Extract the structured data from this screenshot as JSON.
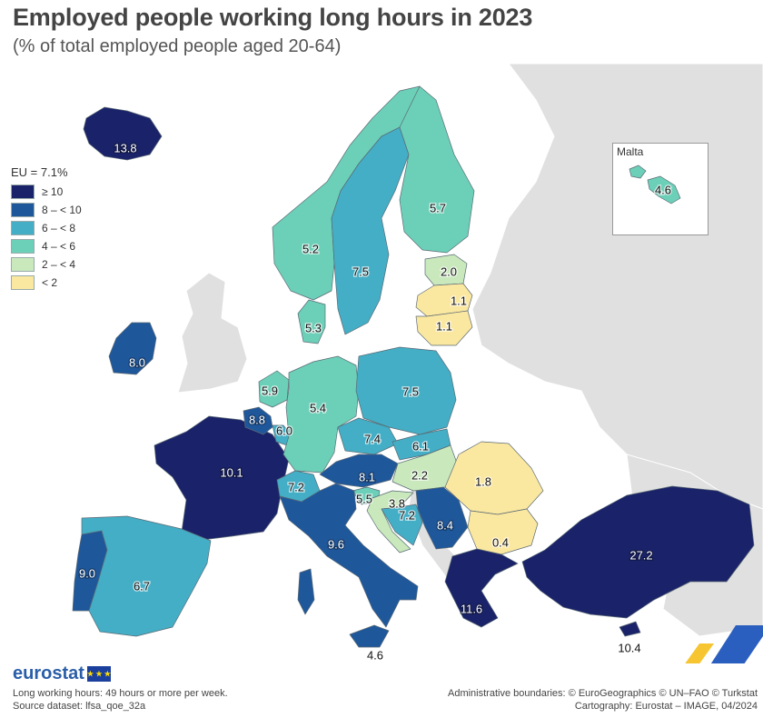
{
  "title": "Employed people working long hours in 2023",
  "subtitle": "(% of total employed people aged 20-64)",
  "legend": {
    "title": "EU = 7.1%",
    "classes": [
      {
        "label": "≥ 10",
        "color": "#1a2369"
      },
      {
        "label": "8 – < 10",
        "color": "#1f579b"
      },
      {
        "label": "6 – < 8",
        "color": "#43aec5"
      },
      {
        "label": "4 – < 6",
        "color": "#6cd0b8"
      },
      {
        "label": "2 – < 4",
        "color": "#c9e9bd"
      },
      {
        "label": "< 2",
        "color": "#fbe8a0"
      }
    ]
  },
  "inset": {
    "label": "Malta"
  },
  "map_data": {
    "type": "choropleth",
    "unit": "% of total employed people aged 20-64",
    "countries": [
      {
        "name": "Iceland",
        "value": "13.8"
      },
      {
        "name": "Ireland",
        "value": "8.0"
      },
      {
        "name": "France",
        "value": "10.1"
      },
      {
        "name": "Belgium",
        "value": "8.8"
      },
      {
        "name": "Netherlands",
        "value": "5.9"
      },
      {
        "name": "Luxembourg",
        "value": "6.0"
      },
      {
        "name": "Germany",
        "value": "5.4"
      },
      {
        "name": "Denmark",
        "value": "5.3"
      },
      {
        "name": "Norway",
        "value": "5.2"
      },
      {
        "name": "Sweden",
        "value": "7.5"
      },
      {
        "name": "Finland",
        "value": "5.7"
      },
      {
        "name": "Estonia",
        "value": "2.0"
      },
      {
        "name": "Latvia",
        "value": "1.1"
      },
      {
        "name": "Lithuania",
        "value": "1.1"
      },
      {
        "name": "Poland",
        "value": "7.5"
      },
      {
        "name": "Czechia",
        "value": "7.4"
      },
      {
        "name": "Slovakia",
        "value": "6.1"
      },
      {
        "name": "Austria",
        "value": "8.1"
      },
      {
        "name": "Switzerland",
        "value": "7.2"
      },
      {
        "name": "Hungary",
        "value": "2.2"
      },
      {
        "name": "Slovenia",
        "value": "5.5"
      },
      {
        "name": "Croatia",
        "value": "3.8"
      },
      {
        "name": "Bosnia and Herzegovina",
        "value": "7.2"
      },
      {
        "name": "Serbia",
        "value": "8.4"
      },
      {
        "name": "Romania",
        "value": "1.8"
      },
      {
        "name": "Bulgaria",
        "value": "0.4"
      },
      {
        "name": "Italy",
        "value": "9.6"
      },
      {
        "name": "Portugal",
        "value": "9.0"
      },
      {
        "name": "Spain",
        "value": "6.7"
      },
      {
        "name": "Greece",
        "value": "11.6"
      },
      {
        "name": "Türkiye",
        "value": "27.2"
      },
      {
        "name": "Cyprus",
        "value": "10.4"
      },
      {
        "name": "Malta",
        "value": "4.6"
      },
      {
        "name": "Sicily label",
        "value": "4.6"
      }
    ]
  },
  "brand": {
    "logo": "eurostat"
  },
  "footnotes": {
    "definition": "Long working hours: 49 hours or more per week.",
    "source": "Source dataset: lfsa_qoe_32a",
    "boundaries": "Administrative boundaries: © EuroGeographics © UN–FAO © Turkstat",
    "cartography": "Cartography: Eurostat – IMAGE, 04/2024"
  }
}
